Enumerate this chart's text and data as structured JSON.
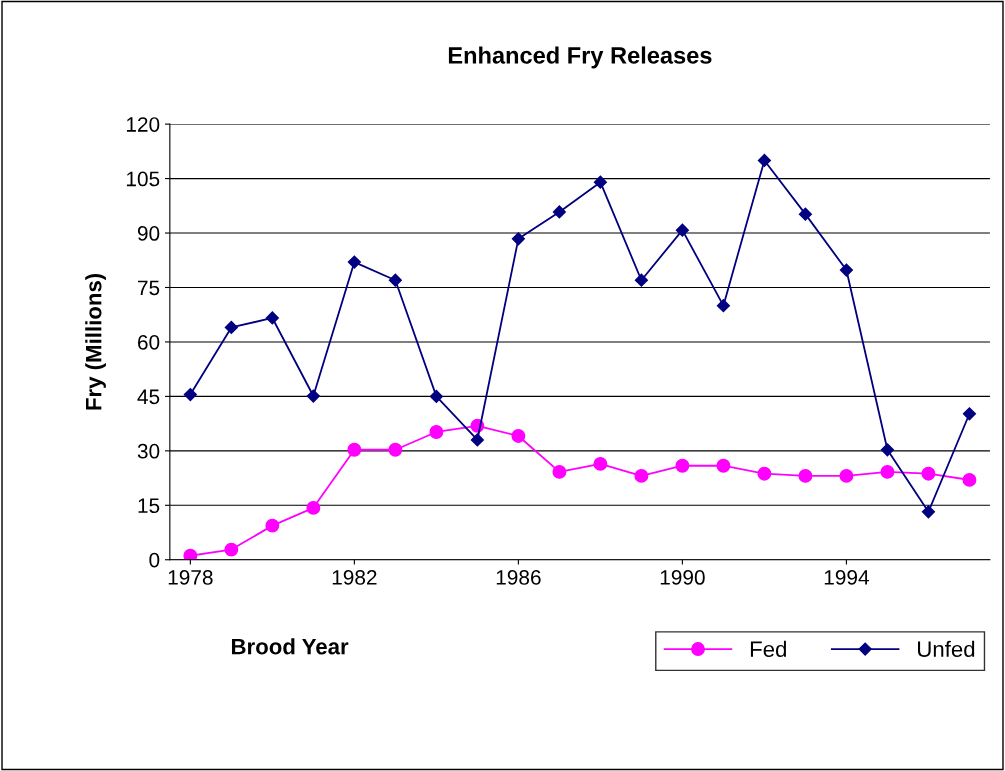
{
  "chart_data": {
    "type": "line",
    "title": "Enhanced Fry Releases",
    "xlabel": "Brood Year",
    "ylabel": "Fry (Millions)",
    "x": [
      1978,
      1979,
      1980,
      1981,
      1982,
      1983,
      1984,
      1985,
      1986,
      1987,
      1988,
      1989,
      1990,
      1991,
      1992,
      1993,
      1994,
      1995,
      1996,
      1997
    ],
    "series": [
      {
        "name": "Fed",
        "color": "#ff00ff",
        "marker": "circle",
        "values": [
          1.1,
          2.8,
          9.4,
          14.3,
          30.3,
          30.3,
          35.2,
          36.9,
          34.1,
          24.2,
          26.4,
          23.1,
          25.9,
          25.9,
          23.7,
          23.1,
          23.1,
          24.2,
          23.7,
          22
        ]
      },
      {
        "name": "Unfed",
        "color": "#000080",
        "marker": "diamond",
        "values": [
          45.5,
          64,
          66.6,
          45.1,
          82,
          77,
          45,
          33,
          88.4,
          95.8,
          104,
          77,
          90.8,
          70,
          110,
          95.2,
          79.8,
          30.3,
          13.2,
          40.2
        ]
      }
    ],
    "xlim": [
      1977.5,
      1997.5
    ],
    "xticks": [
      1978,
      1982,
      1986,
      1990,
      1994
    ],
    "ylim": [
      0,
      120
    ],
    "yticks": [
      0,
      15,
      30,
      45,
      60,
      75,
      90,
      105,
      120
    ],
    "grid": "y",
    "legend": "bottom right"
  }
}
